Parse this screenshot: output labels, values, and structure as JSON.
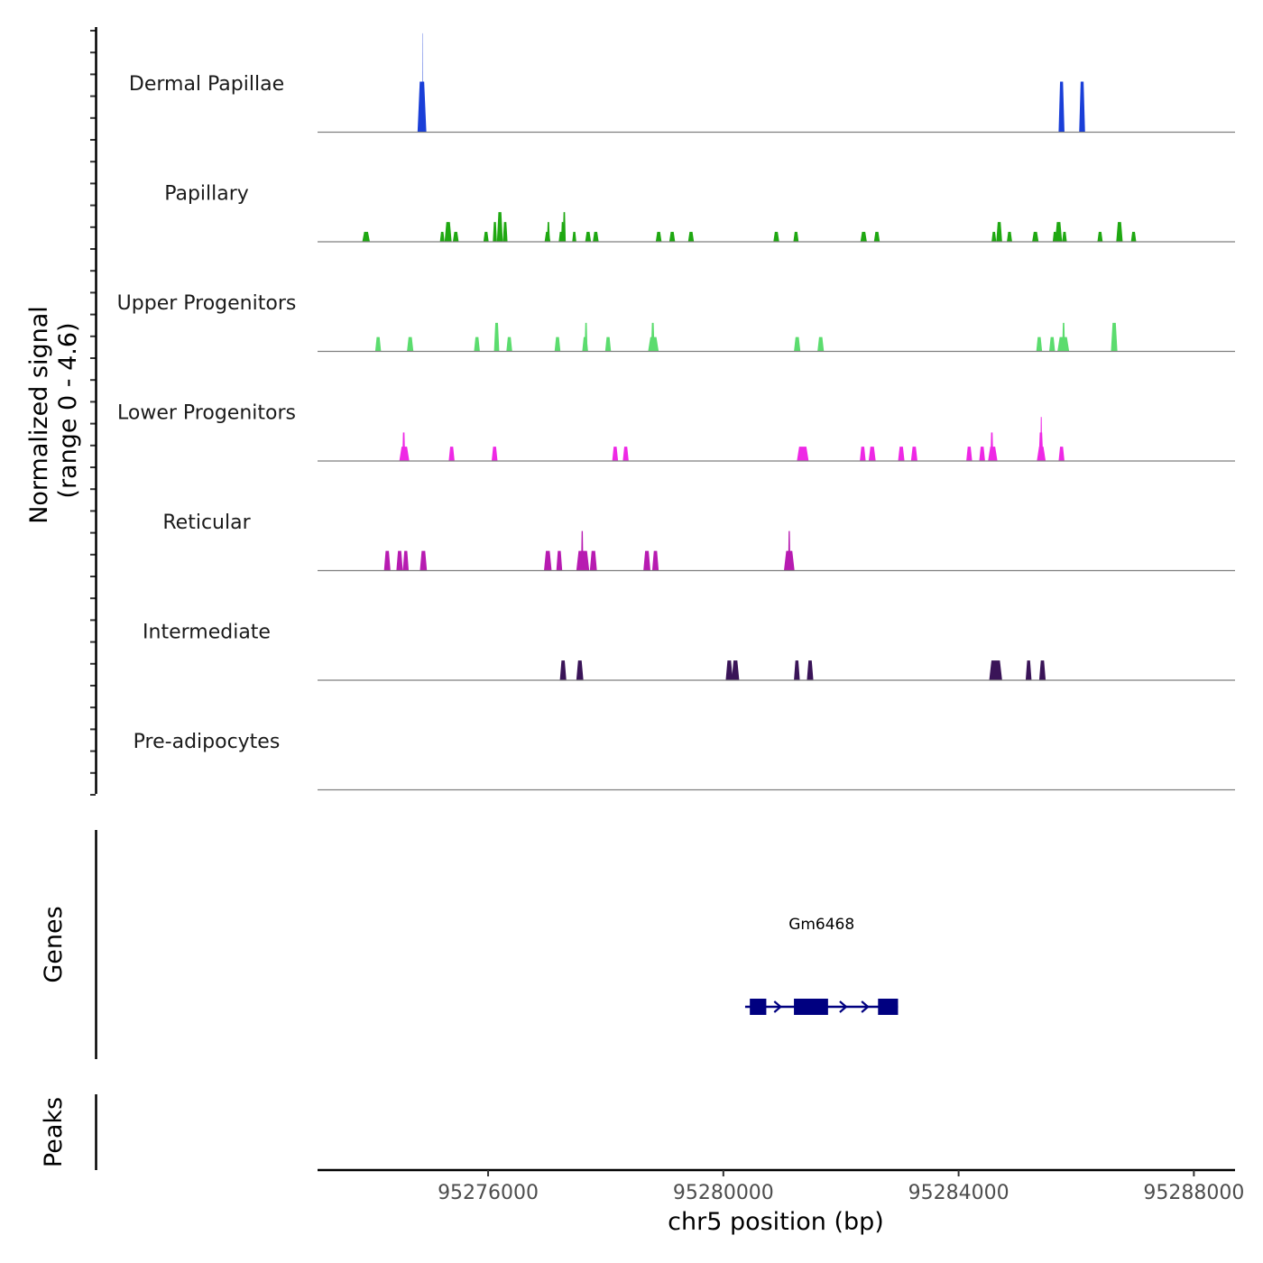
{
  "chart_data": {
    "type": "area",
    "title": "",
    "region": {
      "chrom": "chr5",
      "start": 95273100,
      "end": 95288700
    },
    "xlabel": "chr5 position (bp)",
    "xticks": [
      95276000,
      95280000,
      95284000,
      95288000
    ],
    "xtick_labels": [
      "95276000",
      "95280000",
      "95284000",
      "95288000"
    ],
    "coverage": {
      "ylabel_line1": "Normalized signal",
      "ylabel_line2": "(range 0 - 4.6)",
      "ylim": [
        0,
        4.6
      ],
      "tracks": [
        {
          "name": "Dermal Papillae",
          "color": "#1a3fd8",
          "peaks": [
            {
              "start": 95274800,
              "end": 95274950,
              "height": 2.3
            },
            {
              "start": 95274880,
              "end": 95274890,
              "height": 4.5
            },
            {
              "start": 95285700,
              "end": 95285800,
              "height": 2.3
            },
            {
              "start": 95286050,
              "end": 95286150,
              "height": 2.3
            }
          ]
        },
        {
          "name": "Papillary",
          "color": "#1fa812",
          "peaks": [
            {
              "start": 95273860,
              "end": 95273990,
              "height": 0.45
            },
            {
              "start": 95275180,
              "end": 95275260,
              "height": 0.45
            },
            {
              "start": 95275260,
              "end": 95275380,
              "height": 0.9
            },
            {
              "start": 95275400,
              "end": 95275500,
              "height": 0.45
            },
            {
              "start": 95275920,
              "end": 95276010,
              "height": 0.45
            },
            {
              "start": 95276080,
              "end": 95276150,
              "height": 0.9
            },
            {
              "start": 95276150,
              "end": 95276250,
              "height": 1.35
            },
            {
              "start": 95276250,
              "end": 95276330,
              "height": 0.9
            },
            {
              "start": 95276960,
              "end": 95277060,
              "height": 0.45
            },
            {
              "start": 95277000,
              "end": 95277050,
              "height": 0.9
            },
            {
              "start": 95277200,
              "end": 95277280,
              "height": 0.45
            },
            {
              "start": 95277240,
              "end": 95277290,
              "height": 0.9
            },
            {
              "start": 95277270,
              "end": 95277320,
              "height": 1.35
            },
            {
              "start": 95277430,
              "end": 95277500,
              "height": 0.45
            },
            {
              "start": 95277650,
              "end": 95277750,
              "height": 0.45
            },
            {
              "start": 95277780,
              "end": 95277880,
              "height": 0.45
            },
            {
              "start": 95278850,
              "end": 95278950,
              "height": 0.45
            },
            {
              "start": 95279080,
              "end": 95279180,
              "height": 0.45
            },
            {
              "start": 95279400,
              "end": 95279500,
              "height": 0.45
            },
            {
              "start": 95280850,
              "end": 95280950,
              "height": 0.45
            },
            {
              "start": 95281190,
              "end": 95281280,
              "height": 0.45
            },
            {
              "start": 95282330,
              "end": 95282440,
              "height": 0.45
            },
            {
              "start": 95282560,
              "end": 95282660,
              "height": 0.45
            },
            {
              "start": 95284560,
              "end": 95284640,
              "height": 0.45
            },
            {
              "start": 95284640,
              "end": 95284740,
              "height": 0.9
            },
            {
              "start": 95284820,
              "end": 95284910,
              "height": 0.45
            },
            {
              "start": 95285250,
              "end": 95285360,
              "height": 0.45
            },
            {
              "start": 95285600,
              "end": 95285670,
              "height": 0.45
            },
            {
              "start": 95285640,
              "end": 95285760,
              "height": 0.9
            },
            {
              "start": 95285760,
              "end": 95285840,
              "height": 0.45
            },
            {
              "start": 95286360,
              "end": 95286450,
              "height": 0.45
            },
            {
              "start": 95286680,
              "end": 95286790,
              "height": 0.9
            },
            {
              "start": 95286930,
              "end": 95287020,
              "height": 0.45
            }
          ]
        },
        {
          "name": "Upper Progenitors",
          "color": "#5bdc6e",
          "peaks": [
            {
              "start": 95274080,
              "end": 95274180,
              "height": 0.65
            },
            {
              "start": 95274620,
              "end": 95274730,
              "height": 0.65
            },
            {
              "start": 95275760,
              "end": 95275860,
              "height": 0.65
            },
            {
              "start": 95276100,
              "end": 95276190,
              "height": 1.3
            },
            {
              "start": 95276310,
              "end": 95276410,
              "height": 0.65
            },
            {
              "start": 95277130,
              "end": 95277230,
              "height": 0.65
            },
            {
              "start": 95277600,
              "end": 95277700,
              "height": 0.65
            },
            {
              "start": 95277640,
              "end": 95277690,
              "height": 1.3
            },
            {
              "start": 95277990,
              "end": 95278090,
              "height": 0.65
            },
            {
              "start": 95278720,
              "end": 95278900,
              "height": 0.65
            },
            {
              "start": 95278770,
              "end": 95278830,
              "height": 1.3
            },
            {
              "start": 95281200,
              "end": 95281310,
              "height": 0.65
            },
            {
              "start": 95281600,
              "end": 95281710,
              "height": 0.65
            },
            {
              "start": 95285320,
              "end": 95285420,
              "height": 0.65
            },
            {
              "start": 95285540,
              "end": 95285640,
              "height": 0.65
            },
            {
              "start": 95285680,
              "end": 95285880,
              "height": 0.65
            },
            {
              "start": 95285760,
              "end": 95285810,
              "height": 1.3
            },
            {
              "start": 95286590,
              "end": 95286700,
              "height": 1.3
            }
          ]
        },
        {
          "name": "Lower Progenitors",
          "color": "#ee28e5",
          "peaks": [
            {
              "start": 95274490,
              "end": 95274660,
              "height": 0.65
            },
            {
              "start": 95274540,
              "end": 95274590,
              "height": 1.3
            },
            {
              "start": 95275330,
              "end": 95275430,
              "height": 0.65
            },
            {
              "start": 95276060,
              "end": 95276160,
              "height": 0.65
            },
            {
              "start": 95278110,
              "end": 95278210,
              "height": 0.65
            },
            {
              "start": 95278290,
              "end": 95278390,
              "height": 0.65
            },
            {
              "start": 95281250,
              "end": 95281450,
              "height": 0.65
            },
            {
              "start": 95282320,
              "end": 95282420,
              "height": 0.65
            },
            {
              "start": 95282470,
              "end": 95282590,
              "height": 0.65
            },
            {
              "start": 95282970,
              "end": 95283080,
              "height": 0.65
            },
            {
              "start": 95283190,
              "end": 95283300,
              "height": 0.65
            },
            {
              "start": 95284130,
              "end": 95284230,
              "height": 0.65
            },
            {
              "start": 95284350,
              "end": 95284450,
              "height": 0.65
            },
            {
              "start": 95284500,
              "end": 95284660,
              "height": 0.65
            },
            {
              "start": 95284540,
              "end": 95284590,
              "height": 1.3
            },
            {
              "start": 95285330,
              "end": 95285480,
              "height": 0.65
            },
            {
              "start": 95285360,
              "end": 95285440,
              "height": 1.3
            },
            {
              "start": 95285390,
              "end": 95285420,
              "height": 2.0
            },
            {
              "start": 95285700,
              "end": 95285800,
              "height": 0.65
            }
          ]
        },
        {
          "name": "Reticular",
          "color": "#b71bb1",
          "peaks": [
            {
              "start": 95274230,
              "end": 95274340,
              "height": 0.9
            },
            {
              "start": 95274440,
              "end": 95274550,
              "height": 0.9
            },
            {
              "start": 95274550,
              "end": 95274650,
              "height": 0.9
            },
            {
              "start": 95274840,
              "end": 95274960,
              "height": 0.9
            },
            {
              "start": 95276950,
              "end": 95277080,
              "height": 0.9
            },
            {
              "start": 95277160,
              "end": 95277260,
              "height": 0.9
            },
            {
              "start": 95277500,
              "end": 95277720,
              "height": 0.9
            },
            {
              "start": 95277580,
              "end": 95277620,
              "height": 1.8
            },
            {
              "start": 95277730,
              "end": 95277850,
              "height": 0.9
            },
            {
              "start": 95278640,
              "end": 95278760,
              "height": 0.9
            },
            {
              "start": 95278790,
              "end": 95278900,
              "height": 0.9
            },
            {
              "start": 95281030,
              "end": 95281210,
              "height": 0.9
            },
            {
              "start": 95281100,
              "end": 95281140,
              "height": 1.8
            }
          ]
        },
        {
          "name": "Intermediate",
          "color": "#3a1458",
          "peaks": [
            {
              "start": 95277220,
              "end": 95277330,
              "height": 0.9
            },
            {
              "start": 95277500,
              "end": 95277620,
              "height": 0.9
            },
            {
              "start": 95280040,
              "end": 95280160,
              "height": 0.9
            },
            {
              "start": 95280140,
              "end": 95280270,
              "height": 0.9
            },
            {
              "start": 95281200,
              "end": 95281300,
              "height": 0.9
            },
            {
              "start": 95281420,
              "end": 95281530,
              "height": 0.9
            },
            {
              "start": 95284520,
              "end": 95284740,
              "height": 0.9
            },
            {
              "start": 95285140,
              "end": 95285240,
              "height": 0.9
            },
            {
              "start": 95285370,
              "end": 95285480,
              "height": 0.9
            }
          ]
        },
        {
          "name": "Pre-adipocytes",
          "color": "#6b1c6e",
          "peaks": []
        }
      ]
    },
    "genes": {
      "label": "Genes",
      "items": [
        {
          "name": "Gm6468",
          "color": "#000080",
          "strand": "+",
          "start": 95280370,
          "end": 95282970,
          "exons": [
            {
              "start": 95280450,
              "end": 95280730
            },
            {
              "start": 95281200,
              "end": 95281780
            },
            {
              "start": 95282630,
              "end": 95282970
            }
          ]
        }
      ]
    },
    "peaks": {
      "label": "Peaks",
      "items": []
    }
  }
}
